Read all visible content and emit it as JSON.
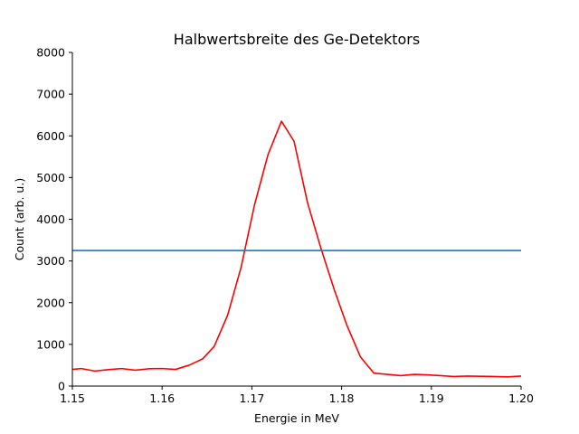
{
  "chart_data": {
    "type": "line",
    "title": "Halbwertsbreite des Ge-Detektors",
    "xlabel": "Energie in MeV",
    "ylabel": "Count (arb. u.)",
    "xlim": [
      1.15,
      1.2
    ],
    "ylim": [
      0,
      8000
    ],
    "xticks": [
      "1.15",
      "1.16",
      "1.17",
      "1.18",
      "1.19",
      "1.20"
    ],
    "yticks": [
      "0",
      "1000",
      "2000",
      "3000",
      "4000",
      "5000",
      "6000",
      "7000",
      "8000"
    ],
    "grid": false,
    "series": [
      {
        "color": "#ff0000",
        "x": [
          1.15,
          1.151,
          1.1525,
          1.154,
          1.1555,
          1.157,
          1.1585,
          1.16,
          1.1615,
          1.163,
          1.1645,
          1.1658,
          1.1673,
          1.1688,
          1.1703,
          1.1718,
          1.1733,
          1.1747,
          1.1762,
          1.1777,
          1.1792,
          1.1806,
          1.1821,
          1.1836,
          1.1851,
          1.1866,
          1.1881,
          1.1895,
          1.191,
          1.1925,
          1.194,
          1.1955,
          1.197,
          1.1985,
          1.2
        ],
        "y": [
          400,
          420,
          360,
          395,
          420,
          380,
          415,
          420,
          400,
          500,
          650,
          950,
          1700,
          2850,
          4350,
          5550,
          6350,
          5870,
          4400,
          3300,
          2300,
          1450,
          700,
          310,
          280,
          250,
          280,
          270,
          250,
          230,
          240,
          235,
          230,
          220,
          240
        ]
      },
      {
        "color": "#1f77b4",
        "x": [
          1.15,
          1.2
        ],
        "y": [
          3250,
          3250
        ]
      }
    ]
  }
}
